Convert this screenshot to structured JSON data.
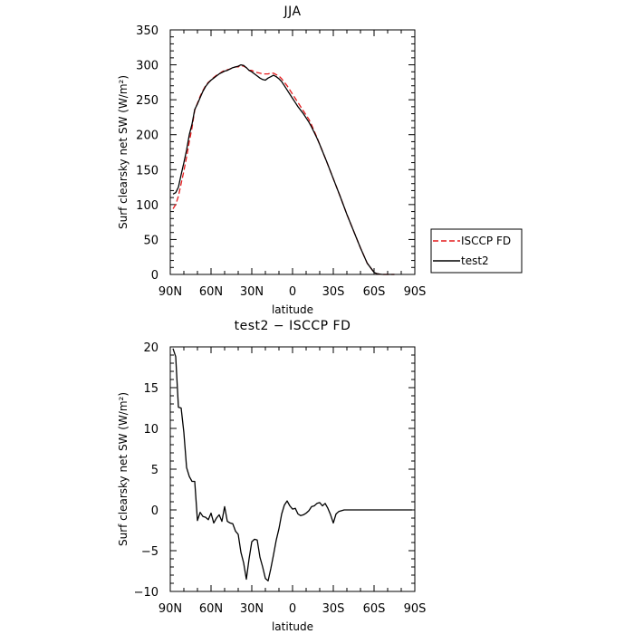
{
  "chart_data": [
    {
      "type": "line",
      "title": "JJA",
      "xlabel": "latitude",
      "ylabel": "Surf clearsky net SW (W/m²)",
      "xlim": [
        90,
        -90
      ],
      "ylim": [
        0,
        350
      ],
      "x_ticks": [
        90,
        60,
        30,
        0,
        -30,
        -60,
        -90
      ],
      "x_tick_labels": [
        "90N",
        "60N",
        "30N",
        "0",
        "30S",
        "60S",
        "90S"
      ],
      "y_ticks": [
        0,
        50,
        100,
        150,
        200,
        250,
        300,
        350
      ],
      "y_tick_labels": [
        "0",
        "50",
        "100",
        "150",
        "200",
        "250",
        "300",
        "350"
      ],
      "legend": "outside-right",
      "series": [
        {
          "name": "ISCCP FD",
          "color": "#e41a1c",
          "style": "dashed",
          "x": [
            88,
            86,
            84,
            82,
            80,
            78,
            76,
            74,
            72,
            70,
            68,
            66,
            64,
            62,
            60,
            58,
            56,
            54,
            52,
            50,
            48,
            46,
            44,
            42,
            40,
            38,
            36,
            34,
            32,
            30,
            28,
            26,
            24,
            22,
            20,
            18,
            16,
            14,
            12,
            10,
            8,
            6,
            4,
            2,
            0,
            -2,
            -4,
            -6,
            -8,
            -10,
            -12,
            -14,
            -16,
            -18,
            -20,
            -25,
            -30,
            -35,
            -40,
            -45,
            -50,
            -55,
            -60,
            -62,
            -64,
            -66,
            -70,
            -75
          ],
          "values": [
            94,
            100,
            112,
            130,
            148,
            168,
            190,
            210,
            235,
            245,
            255,
            263,
            270,
            275,
            278,
            282,
            285,
            287,
            290,
            292,
            293,
            294,
            296,
            297,
            297,
            299,
            298,
            296,
            292,
            292,
            290,
            289,
            288,
            287,
            287,
            287,
            288,
            288,
            286,
            284,
            280,
            275,
            270,
            264,
            258,
            252,
            246,
            240,
            234,
            228,
            222,
            214,
            205,
            196,
            186,
            162,
            137,
            112,
            86,
            62,
            38,
            16,
            3,
            1,
            0.5,
            0,
            0,
            0
          ]
        },
        {
          "name": "test2",
          "color": "#000000",
          "style": "solid",
          "x": [
            88,
            86,
            84,
            82,
            80,
            78,
            76,
            74,
            72,
            70,
            68,
            66,
            64,
            62,
            60,
            58,
            56,
            54,
            52,
            50,
            48,
            46,
            44,
            42,
            40,
            38,
            36,
            34,
            32,
            30,
            28,
            26,
            24,
            22,
            20,
            18,
            16,
            14,
            12,
            10,
            8,
            6,
            4,
            2,
            0,
            -2,
            -4,
            -6,
            -8,
            -10,
            -12,
            -14,
            -16,
            -18,
            -20,
            -25,
            -30,
            -35,
            -40,
            -45,
            -50,
            -55,
            -60,
            -62,
            -64,
            -66,
            -70,
            -75
          ],
          "values": [
            115,
            117,
            125,
            143,
            160,
            178,
            200,
            215,
            236,
            244,
            253,
            262,
            269,
            274,
            278,
            281,
            284,
            287,
            289,
            291,
            292,
            294,
            296,
            297,
            298,
            300,
            299,
            296,
            292,
            290,
            287,
            284,
            281,
            279,
            278,
            281,
            283,
            285,
            283,
            280,
            276,
            270,
            264,
            258,
            252,
            246,
            240,
            235,
            230,
            224,
            218,
            211,
            203,
            195,
            186,
            162,
            137,
            112,
            86,
            62,
            38,
            16,
            3,
            1,
            0.5,
            0,
            0,
            0
          ]
        }
      ]
    },
    {
      "type": "line",
      "title": "test2 − ISCCP FD",
      "xlabel": "latitude",
      "ylabel": "Surf clearsky net SW (W/m²)",
      "xlim": [
        90,
        -90
      ],
      "ylim": [
        -10,
        20
      ],
      "x_ticks": [
        90,
        60,
        30,
        0,
        -30,
        -60,
        -90
      ],
      "x_tick_labels": [
        "90N",
        "60N",
        "30N",
        "0",
        "30S",
        "60S",
        "90S"
      ],
      "y_ticks": [
        -10,
        -5,
        0,
        5,
        10,
        15,
        20
      ],
      "y_tick_labels": [
        "−10",
        "−5",
        "0",
        "5",
        "10",
        "15",
        "20"
      ],
      "series": [
        {
          "color": "#000000",
          "style": "solid",
          "x": [
            88,
            86,
            84,
            82,
            80,
            78,
            76,
            74,
            72,
            70,
            68,
            66,
            64,
            62,
            60,
            58,
            56,
            54,
            52,
            50,
            48,
            46,
            44,
            42,
            40,
            38,
            36,
            34,
            32,
            30,
            28,
            26,
            24,
            22,
            20,
            18,
            16,
            14,
            12,
            10,
            8,
            6,
            4,
            2,
            0,
            -2,
            -4,
            -6,
            -8,
            -10,
            -12,
            -14,
            -16,
            -18,
            -20,
            -22,
            -24,
            -26,
            -28,
            -30,
            -32,
            -34,
            -36,
            -38,
            -40,
            -42,
            -44,
            -46,
            -48,
            -50,
            -52,
            -54,
            -56,
            -58,
            -60,
            -62,
            -64,
            -66,
            -68,
            -70,
            -75,
            -80,
            -85,
            -88
          ],
          "values": [
            19.8,
            18.8,
            12.6,
            12.5,
            9.5,
            5.2,
            4.1,
            3.5,
            3.5,
            -1.3,
            -0.3,
            -0.8,
            -0.9,
            -1.2,
            -0.4,
            -1.6,
            -1.0,
            -0.6,
            -1.4,
            0.4,
            -1.4,
            -1.6,
            -1.7,
            -2.6,
            -3.0,
            -5.2,
            -6.5,
            -8.5,
            -6.0,
            -3.9,
            -3.6,
            -3.7,
            -5.8,
            -7.0,
            -8.4,
            -8.7,
            -7.2,
            -5.5,
            -3.7,
            -2.3,
            -0.5,
            0.6,
            1.1,
            0.5,
            0.1,
            0.2,
            -0.5,
            -0.7,
            -0.6,
            -0.4,
            -0.1,
            0.4,
            0.5,
            0.8,
            0.9,
            0.5,
            0.8,
            0.2,
            -0.6,
            -1.6,
            -0.5,
            -0.2,
            -0.1,
            0.0,
            0.0,
            0.0,
            0.0,
            0.0,
            0.0,
            0.0,
            0.0,
            0.0,
            0.0,
            0.0,
            0.0,
            0.0,
            0.0,
            0.0,
            0.0,
            0.0,
            0.0,
            0.0,
            0.0,
            0.0
          ]
        }
      ]
    }
  ]
}
